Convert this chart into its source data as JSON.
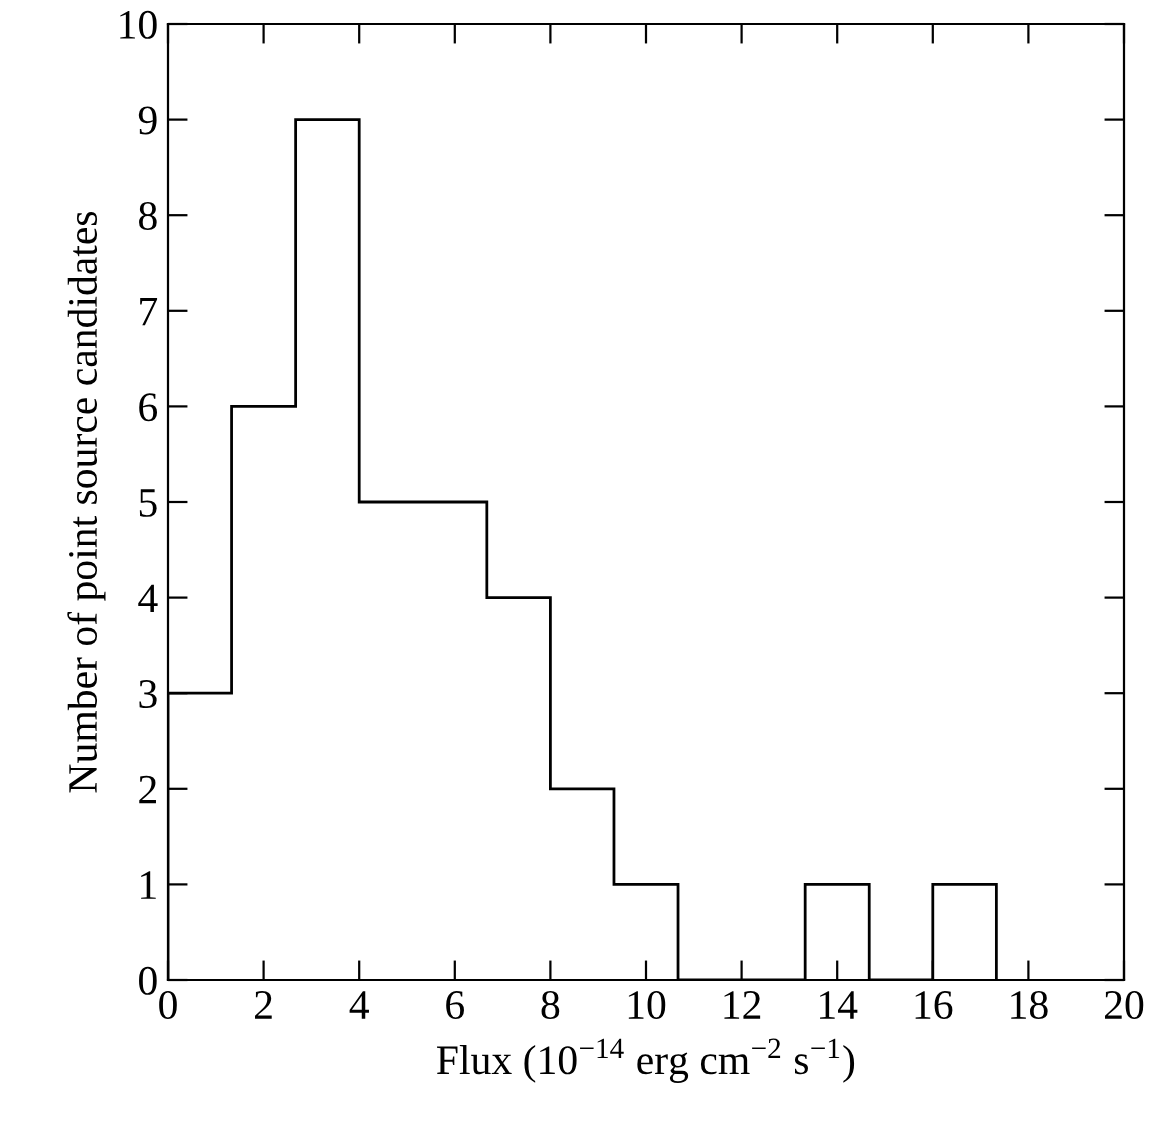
{
  "chart_data": {
    "type": "histogram",
    "xlabel": "Flux (10$^{−14}$ erg cm$^{−2}$ s$^{−1}$)",
    "ylabel": "Number of point source candidates",
    "bins": [
      0,
      1.33,
      2.67,
      4,
      5.33,
      6.67,
      8,
      9.33,
      10.67,
      12,
      13.33,
      14.67,
      16,
      17.33
    ],
    "values": [
      3,
      6,
      9,
      5,
      5,
      4,
      2,
      1,
      0,
      0,
      1,
      0,
      1
    ],
    "color": "#000000",
    "xlim": [
      0,
      20
    ],
    "xticks": [
      0,
      2,
      4,
      6,
      8,
      10,
      12,
      14,
      16,
      18,
      20
    ],
    "ylim": [
      0,
      10
    ],
    "yticks": [
      0,
      1,
      2,
      3,
      4,
      5,
      6,
      7,
      8,
      9,
      10
    ],
    "grid": false
  }
}
